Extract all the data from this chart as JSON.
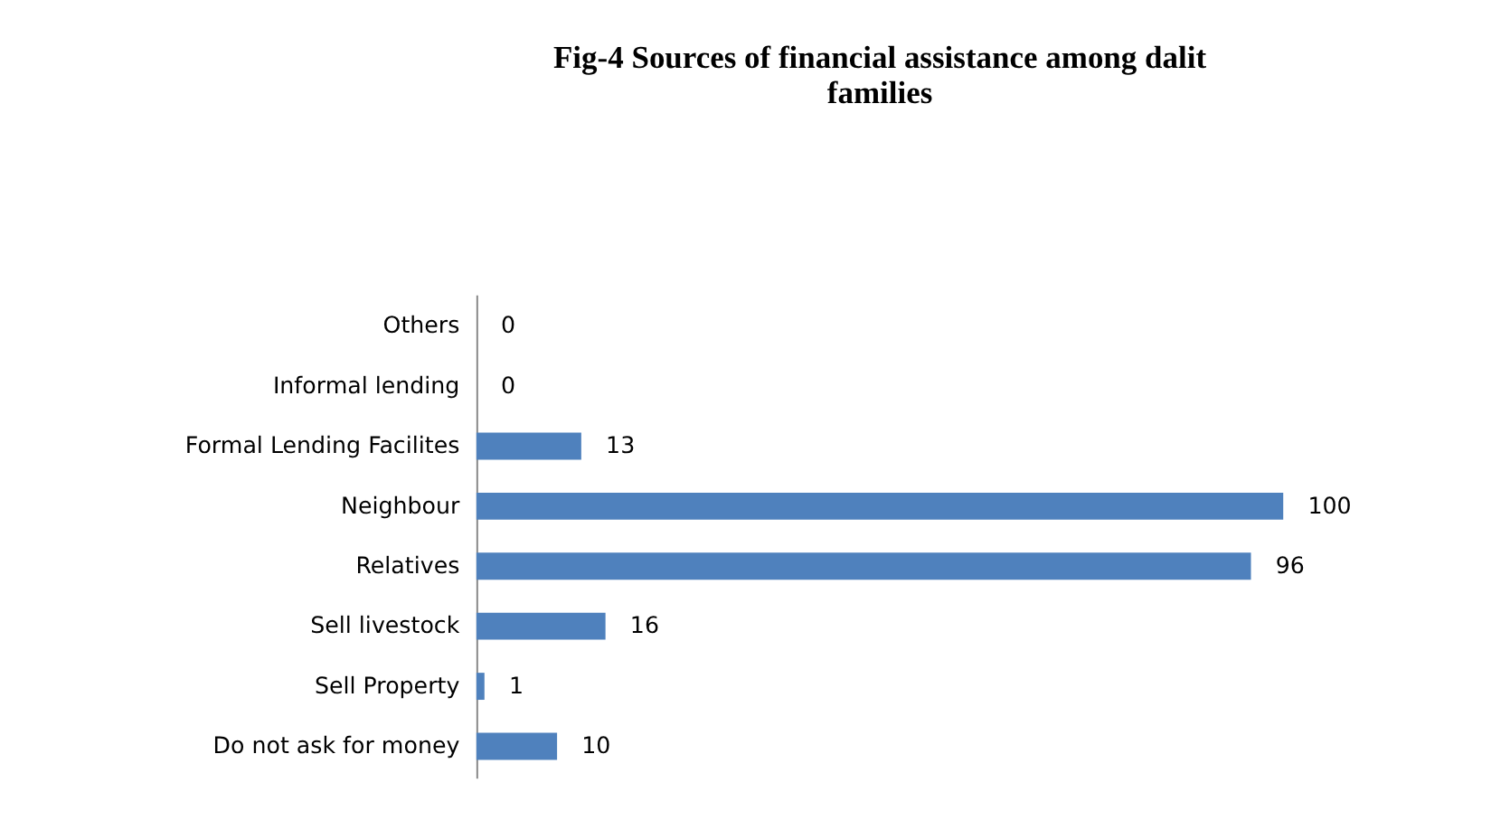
{
  "chart_data": {
    "type": "bar",
    "orientation": "horizontal",
    "title": "Fig-4 Sources of financial assistance among dalit families",
    "categories": [
      "Others",
      "Informal lending",
      "Formal Lending Facilites",
      "Neighbour",
      "Relatives",
      "Sell livestock",
      "Sell Property",
      "Do not ask for money"
    ],
    "values": [
      0,
      0,
      13,
      100,
      96,
      16,
      1,
      10
    ],
    "color": "#4f81bd",
    "data_labels": true
  }
}
